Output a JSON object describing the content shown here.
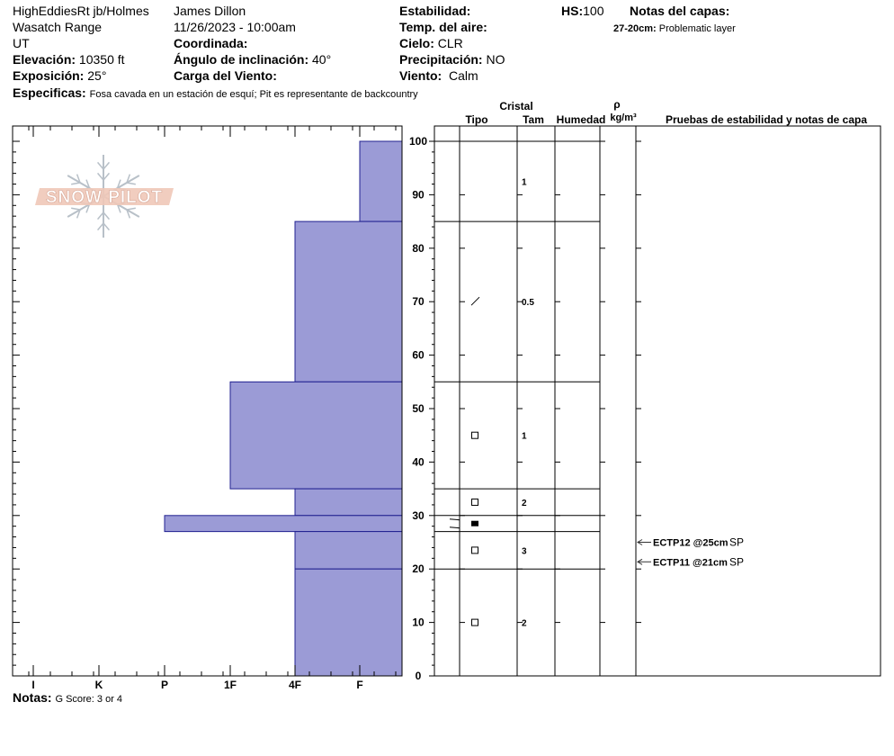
{
  "header": {
    "location": "HighEddiesRt jb/Holmes",
    "range": "Wasatch Range",
    "state": "UT",
    "elevation_label": "Elevación:",
    "elevation_value": "10350 ft",
    "aspect_label": "Exposición:",
    "aspect_value": "25°",
    "observer": "James Dillon",
    "datetime": "11/26/2023 - 10:00am",
    "coordinates_label": "Coordinada:",
    "slope_label": "Ángulo de inclinación:",
    "slope_value": "40°",
    "wind_load_label": "Carga del Viento:",
    "stability_label": "Estabilidad:",
    "air_temp_label": "Temp. del aire:",
    "sky_label": "Cielo:",
    "sky_value": "CLR",
    "precip_label": "Precipitación:",
    "precip_value": "NO",
    "wind_label": "Viento:",
    "wind_value": "Calm",
    "hs_label": "HS:",
    "hs_value": "100",
    "layer_notes_label": "Notas del capas:",
    "layer_note_depth": "27-20cm:",
    "layer_note_text": "Problematic layer",
    "specifics_label": "Especificas:",
    "specifics_value": "Fosa cavada en un estación de esquí; Pit es representante de backcountry"
  },
  "logo": {
    "text": "SNOW PILOT"
  },
  "columns": {
    "crystal": "Cristal",
    "type": "Tipo",
    "size": "Tam",
    "moisture": "Humedad",
    "rho": "ρ",
    "density_unit": "kg/m³",
    "tests": "Pruebas de estabilidad y notas de capa"
  },
  "footer": {
    "notes_label": "Notas:",
    "notes_value": "G Score: 3 or 4"
  },
  "chart_data": {
    "type": "bar",
    "hardness_scale": [
      "I",
      "K",
      "P",
      "1F",
      "4F",
      "F"
    ],
    "height_axis": {
      "min": 0,
      "max": 100,
      "ticks": [
        0,
        10,
        20,
        30,
        40,
        50,
        60,
        70,
        80,
        90,
        100
      ]
    },
    "hardness_profile": [
      {
        "from": 85,
        "to": 100,
        "hardness": "F"
      },
      {
        "from": 55,
        "to": 85,
        "hardness": "4F"
      },
      {
        "from": 35,
        "to": 55,
        "hardness": "1F"
      },
      {
        "from": 30,
        "to": 35,
        "hardness": "4F"
      },
      {
        "from": 27,
        "to": 30,
        "hardness": "P"
      },
      {
        "from": 20,
        "to": 27,
        "hardness": "4F"
      },
      {
        "from": 0,
        "to": 20,
        "hardness": "4F"
      }
    ],
    "layer_boundaries": [
      100,
      85,
      55,
      35,
      30,
      27,
      20
    ],
    "crystals": [
      {
        "height": 92.5,
        "symbol": "none",
        "size": "1"
      },
      {
        "height": 70,
        "symbol": "slash",
        "size": "0.5"
      },
      {
        "height": 45,
        "symbol": "open-square",
        "size": "1"
      },
      {
        "height": 32.5,
        "symbol": "open-square",
        "size": "2"
      },
      {
        "height": 28.5,
        "symbol": "filled-square",
        "size": ""
      },
      {
        "height": 23.5,
        "symbol": "open-square",
        "size": "3"
      },
      {
        "height": 10,
        "symbol": "open-square",
        "size": "2"
      }
    ],
    "tests": [
      {
        "height": 25,
        "label": "ECTP12 @25cm",
        "tag": "SP"
      },
      {
        "height": 21,
        "label": "ECTP11 @21cm",
        "tag": "SP"
      }
    ]
  }
}
